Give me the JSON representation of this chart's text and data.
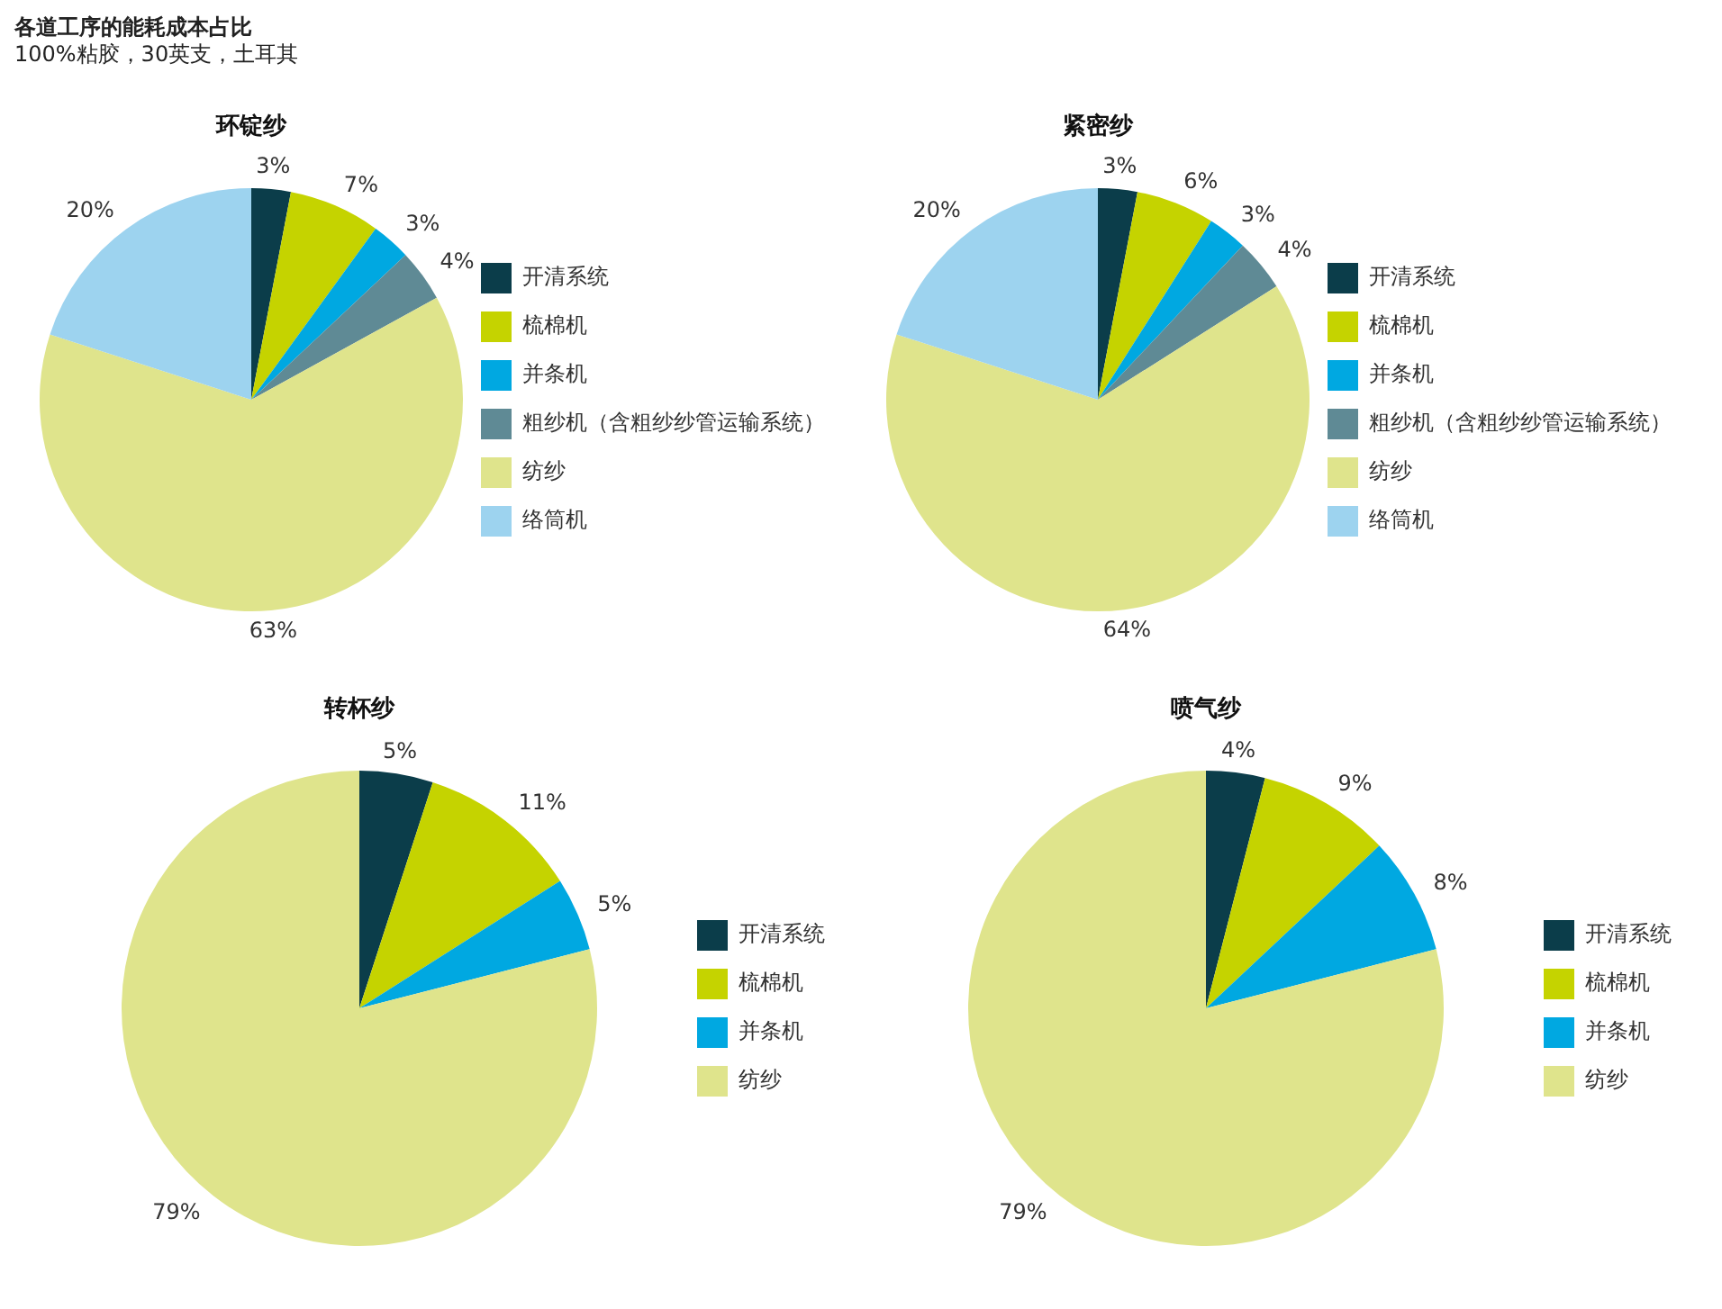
{
  "chart_data": [
    {
      "type": "pie",
      "title": "环锭纱",
      "annotations": [
        "各道工序的能耗成本占比",
        "100%粘胶，30英支，土耳其"
      ],
      "legend": "right",
      "categories": [
        "开清系统",
        "梳棉机",
        "并条机",
        "粗纱机（含粗纱纱管运输系统）",
        "纺纱",
        "络筒机"
      ],
      "values": [
        3,
        7,
        3,
        4,
        63,
        20
      ],
      "value_labels": [
        "3%",
        "7%",
        "3%",
        "4%",
        "63%",
        "20%"
      ],
      "colors": [
        "#0b3d4a",
        "#c5d300",
        "#00a8e1",
        "#5f8a95",
        "#dfe48c",
        "#9dd3ef"
      ]
    },
    {
      "type": "pie",
      "title": "紧密纱",
      "legend": "right",
      "categories": [
        "开清系统",
        "梳棉机",
        "并条机",
        "粗纱机（含粗纱纱管运输系统）",
        "纺纱",
        "络筒机"
      ],
      "values": [
        3,
        6,
        3,
        4,
        64,
        20
      ],
      "value_labels": [
        "3%",
        "6%",
        "3%",
        "4%",
        "64%",
        "20%"
      ],
      "colors": [
        "#0b3d4a",
        "#c5d300",
        "#00a8e1",
        "#5f8a95",
        "#dfe48c",
        "#9dd3ef"
      ]
    },
    {
      "type": "pie",
      "title": "转杯纱",
      "legend": "right",
      "categories": [
        "开清系统",
        "梳棉机",
        "并条机",
        "纺纱"
      ],
      "values": [
        5,
        11,
        5,
        79
      ],
      "value_labels": [
        "5%",
        "11%",
        "5%",
        "79%"
      ],
      "colors": [
        "#0b3d4a",
        "#c5d300",
        "#00a8e1",
        "#dfe48c"
      ]
    },
    {
      "type": "pie",
      "title": "喷气纱",
      "legend": "right",
      "categories": [
        "开清系统",
        "梳棉机",
        "并条机",
        "纺纱"
      ],
      "values": [
        4,
        9,
        8,
        79
      ],
      "value_labels": [
        "4%",
        "9%",
        "8%",
        "79%"
      ],
      "colors": [
        "#0b3d4a",
        "#c5d300",
        "#00a8e1",
        "#dfe48c"
      ]
    }
  ]
}
